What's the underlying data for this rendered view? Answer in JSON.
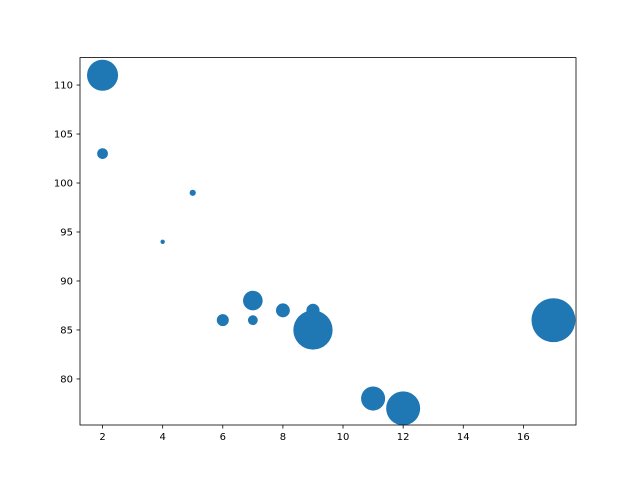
{
  "chart_data": {
    "type": "scatter",
    "title": "",
    "xlabel": "",
    "ylabel": "",
    "xlim": [
      1.25,
      17.75
    ],
    "ylim": [
      75.3,
      112.8
    ],
    "xticks": [
      2,
      4,
      6,
      8,
      10,
      12,
      14,
      16
    ],
    "yticks": [
      80,
      85,
      90,
      95,
      100,
      105,
      110
    ],
    "grid": false,
    "color": "#1f77b4",
    "points": [
      {
        "x": 5,
        "y": 99,
        "size": 20
      },
      {
        "x": 7,
        "y": 86,
        "size": 50
      },
      {
        "x": 8,
        "y": 87,
        "size": 100
      },
      {
        "x": 7,
        "y": 88,
        "size": 200
      },
      {
        "x": 2,
        "y": 111,
        "size": 500
      },
      {
        "x": 17,
        "y": 86,
        "size": 1000
      },
      {
        "x": 2,
        "y": 103,
        "size": 60
      },
      {
        "x": 9,
        "y": 87,
        "size": 90
      },
      {
        "x": 4,
        "y": 94,
        "size": 10
      },
      {
        "x": 11,
        "y": 78,
        "size": 300
      },
      {
        "x": 12,
        "y": 77,
        "size": 600
      },
      {
        "x": 9,
        "y": 85,
        "size": 800
      },
      {
        "x": 6,
        "y": 86,
        "size": 75
      }
    ]
  }
}
